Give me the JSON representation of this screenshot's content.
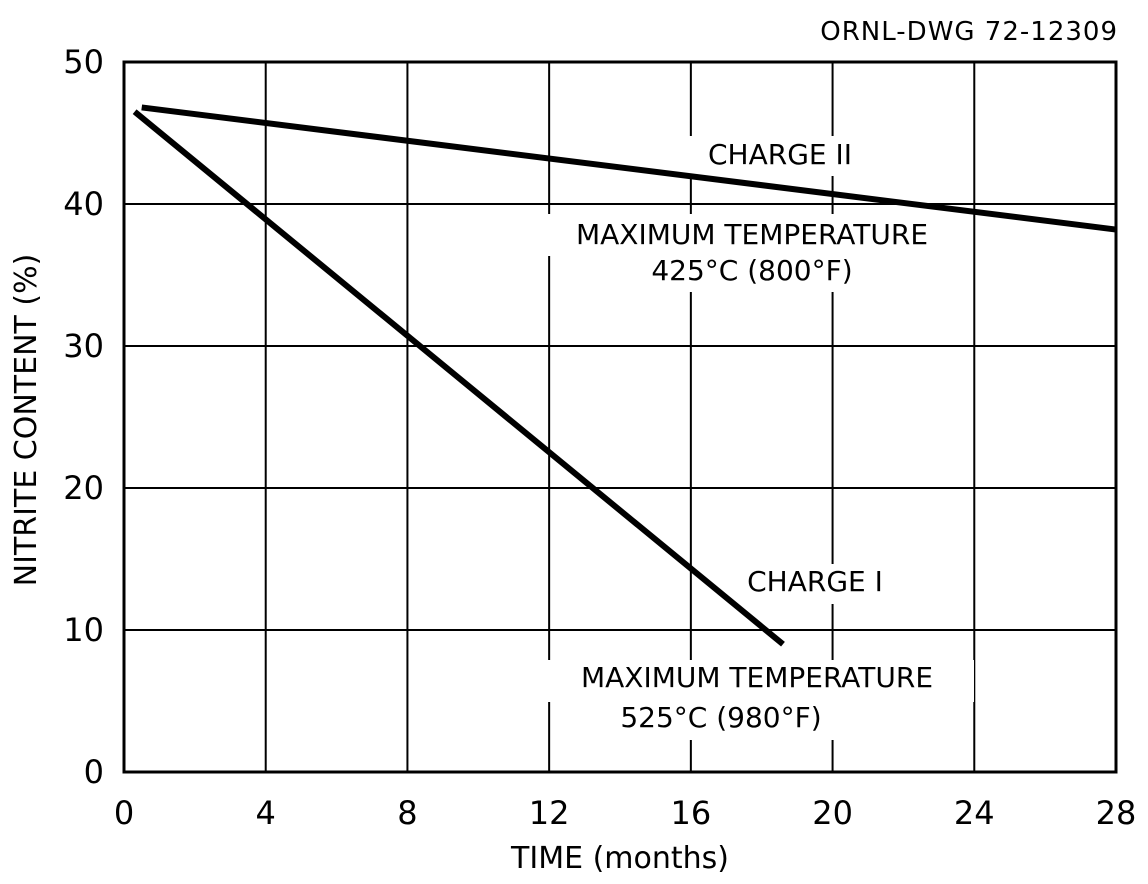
{
  "drawing_number": "ORNL-DWG 72-12309",
  "chart_data": {
    "type": "line",
    "xlabel": "TIME (months)",
    "ylabel": "NITRITE CONTENT (%)",
    "xlim": [
      0,
      28
    ],
    "ylim": [
      0,
      50
    ],
    "xticks": [
      0,
      4,
      8,
      12,
      16,
      20,
      24,
      28
    ],
    "yticks": [
      0,
      10,
      20,
      30,
      40,
      50
    ],
    "grid": true,
    "series": [
      {
        "name": "CHARGE I",
        "x": [
          0.3,
          18.6
        ],
        "y": [
          46.5,
          9.0
        ]
      },
      {
        "name": "CHARGE II",
        "x": [
          0.5,
          28
        ],
        "y": [
          46.8,
          38.2
        ]
      }
    ],
    "annotations": [
      {
        "series": "CHARGE II",
        "label": "CHARGE II",
        "line1": "MAXIMUM  TEMPERATURE",
        "line2": "425°C (800°F)"
      },
      {
        "series": "CHARGE I",
        "label": "CHARGE I",
        "line1": "MAXIMUM TEMPERATURE",
        "line2": "525°C (980°F)"
      }
    ]
  }
}
